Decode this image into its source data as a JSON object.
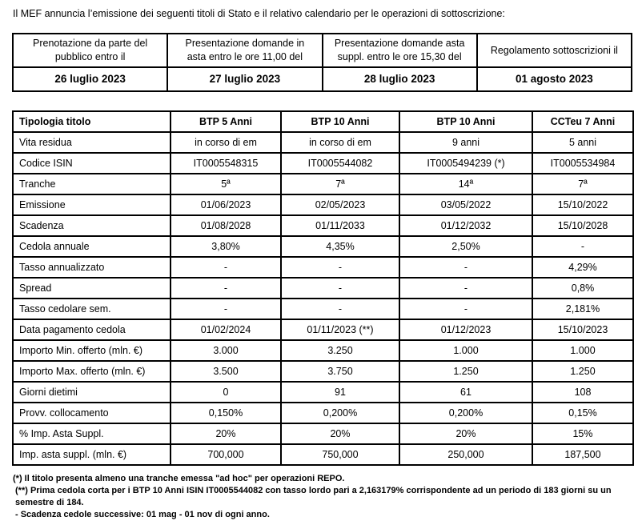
{
  "intro": "Il MEF annuncia l’emissione dei seguenti titoli di Stato e il relativo calendario per le operazioni di sottoscrizione:",
  "calendar_table": {
    "columns": [
      {
        "header": "Prenotazione da parte del pubblico entro il",
        "date": "26 luglio 2023"
      },
      {
        "header": "Presentazione domande in asta entro le ore 11,00 del",
        "date": "27 luglio 2023"
      },
      {
        "header": "Presentazione domande asta suppl. entro le ore 15,30 del",
        "date": "28 luglio 2023"
      },
      {
        "header": "Regolamento sottoscrizioni il",
        "date": "01 agosto 2023"
      }
    ]
  },
  "securities_table": {
    "header_label": "Tipologia titolo",
    "security_headers": [
      "BTP 5 Anni",
      "BTP 10 Anni",
      "BTP 10 Anni",
      "CCTeu 7 Anni"
    ],
    "rows": [
      {
        "label": "Vita residua",
        "values": [
          "in corso di em",
          "in corso di em",
          "9 anni",
          "5 anni"
        ]
      },
      {
        "label": "Codice ISIN",
        "values": [
          "IT0005548315",
          "IT0005544082",
          "IT0005494239 (*)",
          "IT0005534984"
        ]
      },
      {
        "label": "Tranche",
        "values": [
          "5ª",
          "7ª",
          "14ª",
          "7ª"
        ]
      },
      {
        "label": "Emissione",
        "values": [
          "01/06/2023",
          "02/05/2023",
          "03/05/2022",
          "15/10/2022"
        ]
      },
      {
        "label": "Scadenza",
        "values": [
          "01/08/2028",
          "01/11/2033",
          "01/12/2032",
          "15/10/2028"
        ]
      },
      {
        "label": "Cedola annuale",
        "values": [
          "3,80%",
          "4,35%",
          "2,50%",
          "-"
        ]
      },
      {
        "label": "Tasso annualizzato",
        "values": [
          "-",
          "-",
          "-",
          "4,29%"
        ]
      },
      {
        "label": "Spread",
        "values": [
          "-",
          "-",
          "-",
          "0,8%"
        ]
      },
      {
        "label": "Tasso cedolare sem.",
        "values": [
          "-",
          "-",
          "-",
          "2,181%"
        ]
      },
      {
        "label": "Data pagamento cedola",
        "values": [
          "01/02/2024",
          "01/11/2023 (**)",
          "01/12/2023",
          "15/10/2023"
        ]
      },
      {
        "label": "Importo Min. offerto (mln. €)",
        "values": [
          "3.000",
          "3.250",
          "1.000",
          "1.000"
        ]
      },
      {
        "label": "Importo Max. offerto (mln. €)",
        "values": [
          "3.500",
          "3.750",
          "1.250",
          "1.250"
        ]
      },
      {
        "label": "Giorni dietimi",
        "values": [
          "0",
          "91",
          "61",
          "108"
        ]
      },
      {
        "label": "Provv. collocamento",
        "values": [
          "0,150%",
          "0,200%",
          "0,200%",
          "0,15%"
        ]
      },
      {
        "label": "% Imp. Asta Suppl.",
        "values": [
          "20%",
          "20%",
          "20%",
          "15%"
        ]
      },
      {
        "label": "Imp. asta suppl. (mln. €)",
        "values": [
          "700,000",
          "750,000",
          "250,000",
          "187,500"
        ]
      }
    ]
  },
  "footnotes": [
    "(*) Il titolo presenta almeno una tranche emessa \"ad hoc\" per operazioni REPO.",
    "(**) Prima cedola corta per i BTP 10 Anni ISIN IT0005544082 con tasso lordo pari a 2,163179% corrispondente ad un periodo di 183 giorni su un semestre di 184.",
    "- Scadenza cedole successive: 01 mag - 01 nov di ogni anno."
  ],
  "colors": {
    "text": "#000000",
    "border": "#000000",
    "background": "#ffffff"
  }
}
